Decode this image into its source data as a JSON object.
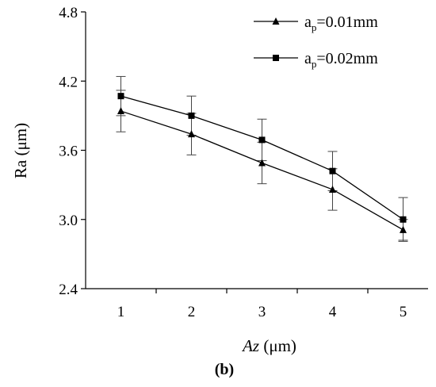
{
  "chart_data": {
    "type": "line",
    "xlabel_italic": "Az",
    "xlabel_rest": " (μm)",
    "ylabel": "Ra (μm)",
    "caption": "(b)",
    "x": [
      1,
      2,
      3,
      4,
      5
    ],
    "x_tick_labels": [
      "1",
      "2",
      "3",
      "4",
      "5"
    ],
    "xlim": [
      0.5,
      5.5
    ],
    "ylim": [
      2.4,
      4.8
    ],
    "y_ticks": [
      2.4,
      3.0,
      3.6,
      4.2,
      4.8
    ],
    "y_tick_labels": [
      "2.4",
      "3.0",
      "3.6",
      "4.2",
      "4.8"
    ],
    "grid": false,
    "legend_position": "top-right",
    "series": [
      {
        "name_base": "a",
        "name_sub": "p",
        "name_rest": "=0.01mm",
        "marker": "triangle",
        "color": "#000000",
        "values": [
          3.94,
          3.74,
          3.49,
          3.26,
          2.91
        ],
        "errors": [
          0.18,
          0.18,
          0.18,
          0.18,
          0.09
        ]
      },
      {
        "name_base": "a",
        "name_sub": "p",
        "name_rest": "=0.02mm",
        "marker": "square",
        "color": "#000000",
        "values": [
          4.07,
          3.9,
          3.69,
          3.42,
          3.0
        ],
        "errors": [
          0.17,
          0.17,
          0.18,
          0.17,
          0.19
        ]
      }
    ]
  }
}
